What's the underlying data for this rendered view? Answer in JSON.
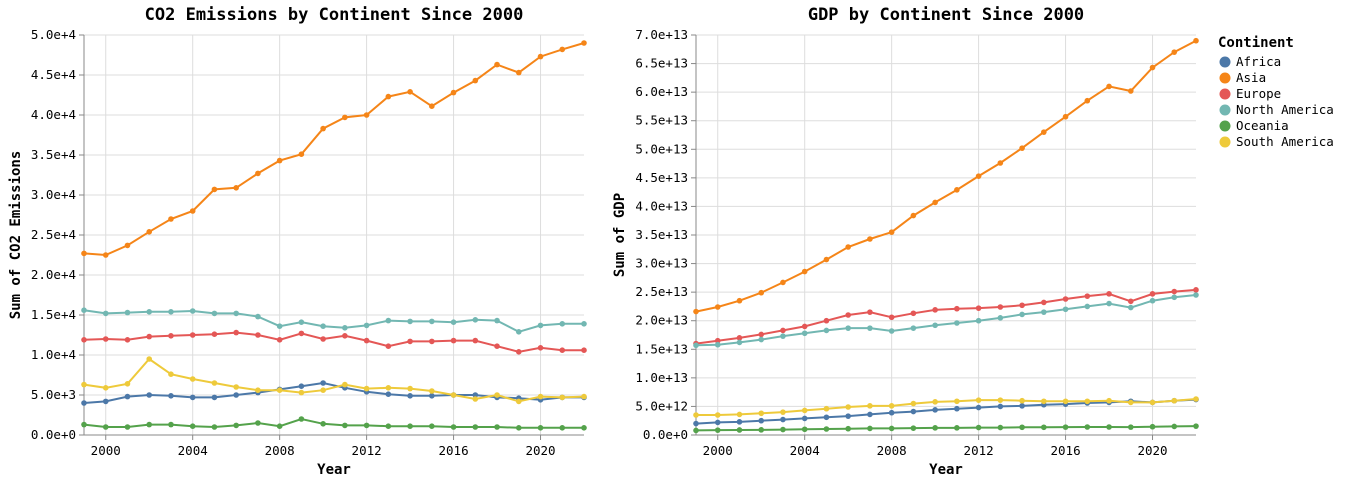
{
  "legend": {
    "title": "Continent",
    "items": [
      {
        "label": "Africa",
        "color": "#4c78a8"
      },
      {
        "label": "Asia",
        "color": "#f58518"
      },
      {
        "label": "Europe",
        "color": "#e45756"
      },
      {
        "label": "North America",
        "color": "#72b7b2"
      },
      {
        "label": "Oceania",
        "color": "#54a24b"
      },
      {
        "label": "South America",
        "color": "#eeca3b"
      }
    ]
  },
  "chart_data": [
    {
      "type": "line",
      "title": "CO2 Emissions by Continent Since 2000",
      "xlabel": "Year",
      "ylabel": "Sum of CO2 Emissions",
      "xlim": [
        1999,
        2022
      ],
      "ylim": [
        0,
        50000
      ],
      "x_ticks": [
        2000,
        2004,
        2008,
        2012,
        2016,
        2020
      ],
      "y_ticks": [
        {
          "value": 0,
          "label": "0.0e+0"
        },
        {
          "value": 5000,
          "label": "5.0e+3"
        },
        {
          "value": 10000,
          "label": "1.0e+4"
        },
        {
          "value": 15000,
          "label": "1.5e+4"
        },
        {
          "value": 20000,
          "label": "2.0e+4"
        },
        {
          "value": 25000,
          "label": "2.5e+4"
        },
        {
          "value": 30000,
          "label": "3.0e+4"
        },
        {
          "value": 35000,
          "label": "3.5e+4"
        },
        {
          "value": 40000,
          "label": "4.0e+4"
        },
        {
          "value": 45000,
          "label": "4.5e+4"
        },
        {
          "value": 50000,
          "label": "5.0e+4"
        }
      ],
      "grid": true,
      "x": [
        1999,
        2000,
        2001,
        2002,
        2003,
        2004,
        2005,
        2006,
        2007,
        2008,
        2009,
        2010,
        2011,
        2012,
        2013,
        2014,
        2015,
        2016,
        2017,
        2018,
        2019,
        2020,
        2021,
        2022
      ],
      "series": [
        {
          "name": "Africa",
          "color": "#4c78a8",
          "values": [
            4000,
            4200,
            4800,
            5000,
            4900,
            4700,
            4700,
            5000,
            5300,
            5700,
            6100,
            6500,
            5900,
            5400,
            5100,
            4900,
            4900,
            5000,
            5000,
            4700,
            4600,
            4400,
            4700,
            4700
          ]
        },
        {
          "name": "Asia",
          "color": "#f58518",
          "values": [
            22700,
            22500,
            23700,
            25400,
            27000,
            28000,
            30700,
            30900,
            32700,
            34300,
            35100,
            38300,
            39700,
            40000,
            42300,
            42900,
            41100,
            42800,
            44300,
            46300,
            45300,
            47300,
            48200,
            49000
          ]
        },
        {
          "name": "Europe",
          "color": "#e45756",
          "values": [
            11900,
            12000,
            11900,
            12300,
            12400,
            12500,
            12600,
            12800,
            12500,
            11900,
            12700,
            12000,
            12400,
            11800,
            11100,
            11700,
            11700,
            11800,
            11800,
            11100,
            10400,
            10900,
            10600,
            10600
          ]
        },
        {
          "name": "North America",
          "color": "#72b7b2",
          "values": [
            15600,
            15200,
            15300,
            15400,
            15400,
            15500,
            15200,
            15200,
            14800,
            13600,
            14100,
            13600,
            13400,
            13700,
            14300,
            14200,
            14200,
            14100,
            14400,
            14300,
            12900,
            13700,
            13900,
            13900
          ]
        },
        {
          "name": "Oceania",
          "color": "#54a24b",
          "values": [
            1300,
            1000,
            1000,
            1300,
            1300,
            1100,
            1000,
            1200,
            1500,
            1100,
            2000,
            1400,
            1200,
            1200,
            1100,
            1100,
            1100,
            1000,
            1000,
            1000,
            900,
            900,
            900,
            900
          ]
        },
        {
          "name": "South America",
          "color": "#eeca3b",
          "values": [
            6300,
            5900,
            6400,
            9500,
            7600,
            7000,
            6500,
            6000,
            5600,
            5600,
            5300,
            5600,
            6300,
            5800,
            5900,
            5800,
            5500,
            5000,
            4500,
            5000,
            4200,
            4800,
            4700,
            4800
          ]
        }
      ]
    },
    {
      "type": "line",
      "title": "GDP by Continent Since 2000",
      "xlabel": "Year",
      "ylabel": "Sum of GDP",
      "xlim": [
        1999,
        2022
      ],
      "ylim": [
        0,
        70000000000000
      ],
      "x_ticks": [
        2000,
        2004,
        2008,
        2012,
        2016,
        2020
      ],
      "y_ticks": [
        {
          "value": 0,
          "label": "0.0e+0"
        },
        {
          "value": 5000000000000,
          "label": "5.0e+12"
        },
        {
          "value": 10000000000000,
          "label": "1.0e+13"
        },
        {
          "value": 15000000000000,
          "label": "1.5e+13"
        },
        {
          "value": 20000000000000,
          "label": "2.0e+13"
        },
        {
          "value": 25000000000000,
          "label": "2.5e+13"
        },
        {
          "value": 30000000000000,
          "label": "3.0e+13"
        },
        {
          "value": 35000000000000,
          "label": "3.5e+13"
        },
        {
          "value": 40000000000000,
          "label": "4.0e+13"
        },
        {
          "value": 45000000000000,
          "label": "4.5e+13"
        },
        {
          "value": 50000000000000,
          "label": "5.0e+13"
        },
        {
          "value": 55000000000000,
          "label": "5.5e+13"
        },
        {
          "value": 60000000000000,
          "label": "6.0e+13"
        },
        {
          "value": 65000000000000,
          "label": "6.5e+13"
        },
        {
          "value": 70000000000000,
          "label": "7.0e+13"
        }
      ],
      "grid": true,
      "x": [
        1999,
        2000,
        2001,
        2002,
        2003,
        2004,
        2005,
        2006,
        2007,
        2008,
        2009,
        2010,
        2011,
        2012,
        2013,
        2014,
        2015,
        2016,
        2017,
        2018,
        2019,
        2020,
        2021,
        2022
      ],
      "series": [
        {
          "name": "Africa",
          "color": "#4c78a8",
          "values": [
            2000000000000,
            2200000000000,
            2300000000000,
            2500000000000,
            2700000000000,
            2900000000000,
            3100000000000,
            3300000000000,
            3600000000000,
            3900000000000,
            4100000000000,
            4400000000000,
            4600000000000,
            4800000000000,
            5000000000000,
            5100000000000,
            5300000000000,
            5400000000000,
            5600000000000,
            5700000000000,
            5900000000000,
            5700000000000,
            6000000000000,
            6200000000000
          ]
        },
        {
          "name": "Asia",
          "color": "#f58518",
          "values": [
            21600000000000,
            22400000000000,
            23500000000000,
            24900000000000,
            26700000000000,
            28600000000000,
            30700000000000,
            32900000000000,
            34300000000000,
            35500000000000,
            38400000000000,
            40700000000000,
            42900000000000,
            45300000000000,
            47600000000000,
            50200000000000,
            53000000000000,
            55700000000000,
            58500000000000,
            61000000000000,
            60200000000000,
            64300000000000,
            67000000000000,
            69000000000000
          ]
        },
        {
          "name": "Europe",
          "color": "#e45756",
          "values": [
            16000000000000,
            16500000000000,
            17000000000000,
            17600000000000,
            18300000000000,
            19000000000000,
            20000000000000,
            21000000000000,
            21500000000000,
            20600000000000,
            21300000000000,
            21900000000000,
            22100000000000,
            22200000000000,
            22400000000000,
            22700000000000,
            23200000000000,
            23800000000000,
            24300000000000,
            24700000000000,
            23400000000000,
            24700000000000,
            25100000000000,
            25400000000000
          ]
        },
        {
          "name": "North America",
          "color": "#72b7b2",
          "values": [
            15700000000000,
            15800000000000,
            16200000000000,
            16700000000000,
            17300000000000,
            17800000000000,
            18300000000000,
            18700000000000,
            18700000000000,
            18200000000000,
            18700000000000,
            19200000000000,
            19600000000000,
            20000000000000,
            20500000000000,
            21100000000000,
            21500000000000,
            22000000000000,
            22500000000000,
            23000000000000,
            22300000000000,
            23500000000000,
            24100000000000,
            24500000000000
          ]
        },
        {
          "name": "Oceania",
          "color": "#54a24b",
          "values": [
            800000000000,
            850000000000,
            880000000000,
            900000000000,
            950000000000,
            1000000000000,
            1050000000000,
            1100000000000,
            1150000000000,
            1150000000000,
            1200000000000,
            1250000000000,
            1250000000000,
            1300000000000,
            1300000000000,
            1350000000000,
            1350000000000,
            1380000000000,
            1400000000000,
            1400000000000,
            1380000000000,
            1450000000000,
            1500000000000,
            1550000000000
          ]
        },
        {
          "name": "South America",
          "color": "#eeca3b",
          "values": [
            3500000000000,
            3500000000000,
            3600000000000,
            3800000000000,
            4000000000000,
            4300000000000,
            4600000000000,
            4900000000000,
            5100000000000,
            5100000000000,
            5500000000000,
            5800000000000,
            5900000000000,
            6100000000000,
            6100000000000,
            6000000000000,
            5900000000000,
            5900000000000,
            5900000000000,
            6000000000000,
            5700000000000,
            5700000000000,
            6000000000000,
            6300000000000
          ]
        }
      ]
    }
  ]
}
